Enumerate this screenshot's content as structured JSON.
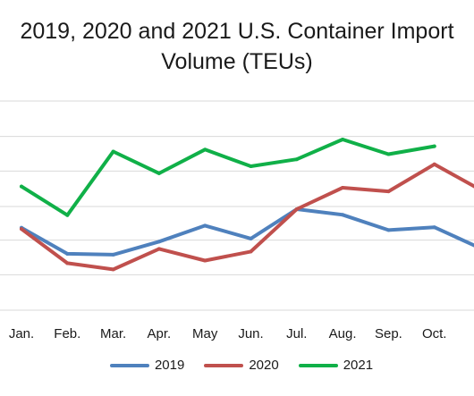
{
  "chart_data": {
    "type": "line",
    "title": "2019, 2020 and 2021 U.S. Container Import",
    "subtitle": "Volume (TEUs)",
    "categories": [
      "Jan.",
      "Feb.",
      "Mar.",
      "Apr.",
      "May",
      "Jun.",
      "Jul.",
      "Aug.",
      "Sep.",
      "Oct.",
      "N"
    ],
    "series": [
      {
        "name": "2019",
        "color": "#4f81bd",
        "values": [
          1.75,
          0.28,
          0.23,
          0.97,
          1.87,
          1.14,
          2.8,
          2.48,
          1.62,
          1.78,
          0.6
        ]
      },
      {
        "name": "2020",
        "color": "#c0504d",
        "values": [
          1.68,
          -0.25,
          -0.6,
          0.56,
          -0.1,
          0.41,
          2.8,
          4.01,
          3.8,
          5.33,
          3.9
        ]
      },
      {
        "name": "2021",
        "color": "#10b048",
        "values": [
          4.08,
          2.46,
          6.05,
          4.82,
          6.16,
          5.22,
          5.61,
          6.73,
          5.9,
          6.35,
          null
        ]
      }
    ],
    "ylim": [
      -2.9,
      8.9
    ],
    "gridlines": [
      -2.9,
      -0.9,
      1.05,
      2.95,
      4.95,
      6.9,
      8.9
    ],
    "y_tick_labels": "none",
    "grid": true,
    "legend": "bottom"
  }
}
